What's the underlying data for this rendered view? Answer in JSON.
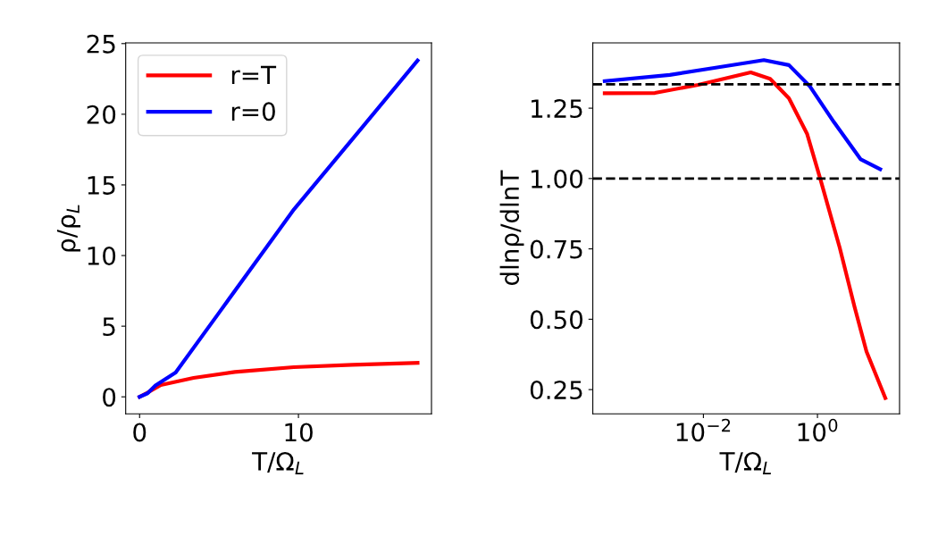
{
  "chart_data": [
    {
      "type": "line",
      "xlabel": "T/Ω$_{L}$",
      "ylabel": "ρ/ρ$_{L}$",
      "xlim": [
        -0.875,
        18.375
      ],
      "ylim": [
        -1.2,
        25.05
      ],
      "xticks": [
        0,
        10
      ],
      "yticks": [
        0,
        5,
        10,
        15,
        20,
        25
      ],
      "legend": "top left",
      "grid": false,
      "line_style": "solid",
      "series": [
        {
          "name": "r=T",
          "color": "#ff0000",
          "x": [
            0,
            0.5,
            1.34,
            3.4,
            6.0,
            9.7,
            13.4,
            17.5
          ],
          "values": [
            0,
            0.3,
            0.84,
            1.34,
            1.76,
            2.1,
            2.27,
            2.4
          ]
        },
        {
          "name": "r=0",
          "color": "#0000ff",
          "x": [
            0,
            0.5,
            1.0,
            2.27,
            5.0,
            9.72,
            14.0,
            17.5
          ],
          "values": [
            0,
            0.25,
            0.8,
            1.72,
            5.95,
            13.27,
            19.05,
            23.8
          ]
        }
      ]
    },
    {
      "type": "line",
      "xlabel": "T/Ω$_{L}$",
      "ylabel": "dlnρ/dlnT",
      "log": "x",
      "xlim": [
        0.000115,
        27.5
      ],
      "ylim": [
        0.164,
        1.482
      ],
      "xticks": [
        {
          "value": 0.01,
          "label": "10$^{−2}$"
        },
        {
          "value": 1,
          "label": "10$^{0}$"
        }
      ],
      "yticks": [
        {
          "value": 0.25,
          "label": "0.25"
        },
        {
          "value": 0.5,
          "label": "0.50"
        },
        {
          "value": 0.75,
          "label": "0.75"
        },
        {
          "value": 1.0,
          "label": "1.00"
        },
        {
          "value": 1.25,
          "label": "1.25"
        }
      ],
      "grid": false,
      "line_style": "solid",
      "ref_lines": [
        {
          "axis": "y",
          "value": 1.335,
          "color": "#000000",
          "line_style": "dashed"
        },
        {
          "axis": "y",
          "value": 1.0,
          "color": "#000000",
          "line_style": "dashed"
        }
      ],
      "series": [
        {
          "color": "#ff0000",
          "x": [
            0.000186,
            0.00141,
            0.0081,
            0.0676,
            0.148,
            0.316,
            0.66,
            1.12,
            2.45,
            4.47,
            7.24,
            15.5
          ],
          "values": [
            1.303,
            1.304,
            1.333,
            1.377,
            1.354,
            1.285,
            1.158,
            0.999,
            0.755,
            0.544,
            0.385,
            0.22
          ]
        },
        {
          "color": "#0000ff",
          "x": [
            0.000186,
            0.00257,
            0.0155,
            0.115,
            0.316,
            0.74,
            1.95,
            5.75,
            12.6
          ],
          "values": [
            1.346,
            1.368,
            1.393,
            1.421,
            1.403,
            1.327,
            1.2,
            1.068,
            1.033
          ]
        }
      ]
    }
  ]
}
